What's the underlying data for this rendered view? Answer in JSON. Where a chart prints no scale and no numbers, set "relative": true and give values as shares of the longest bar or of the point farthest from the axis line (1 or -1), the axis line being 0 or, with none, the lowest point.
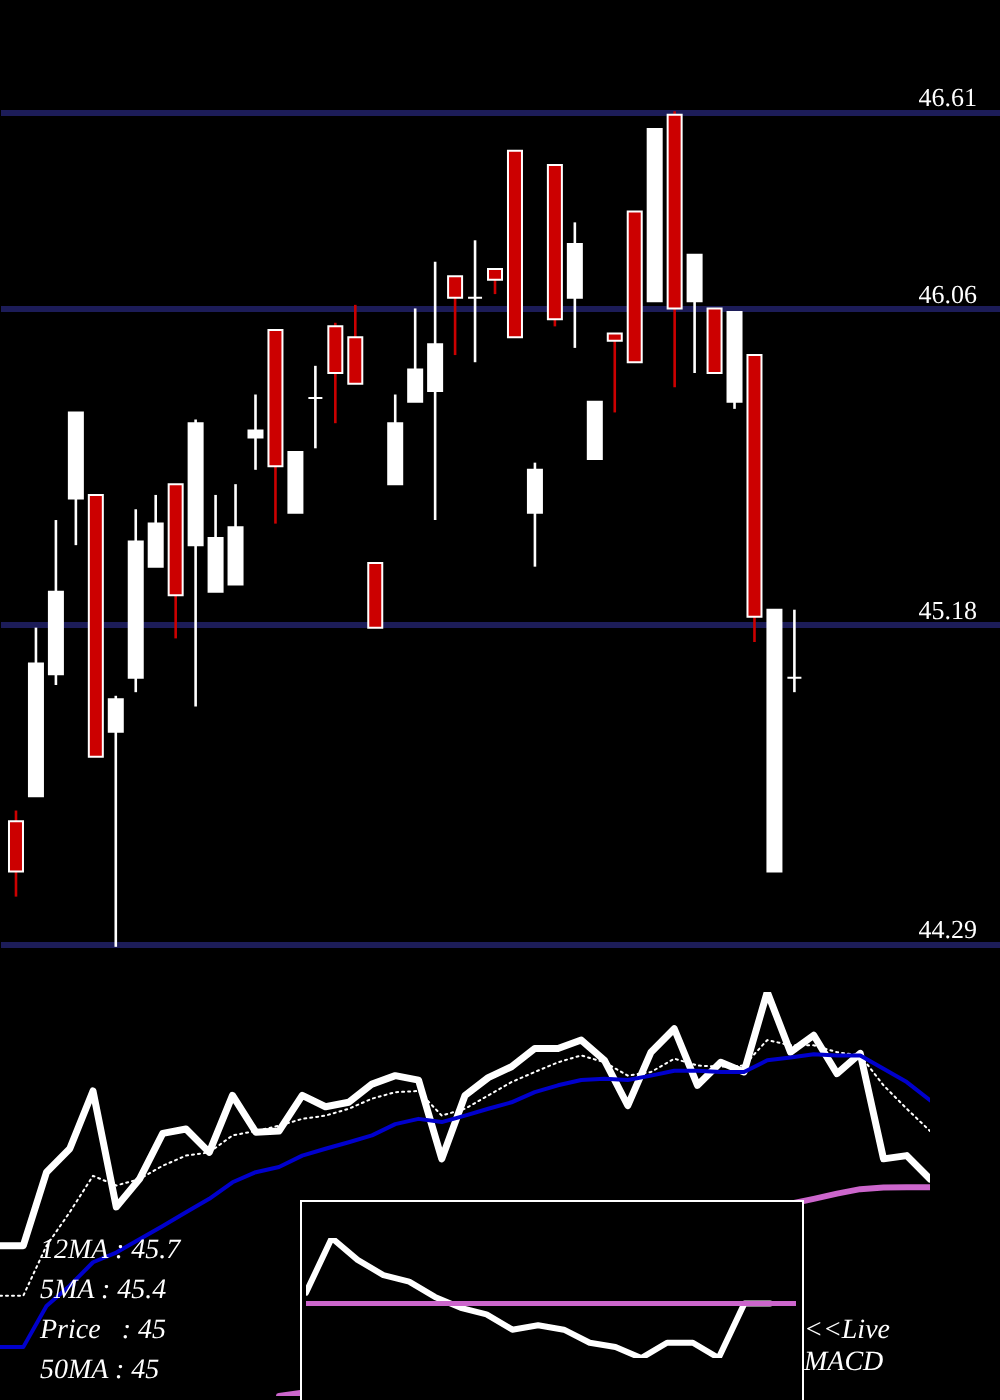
{
  "chart_data": [
    {
      "type": "candlestick",
      "categories": [
        null,
        null,
        null,
        null,
        null,
        null,
        null,
        null,
        null,
        null,
        null,
        null,
        null,
        null,
        null,
        null,
        null,
        null,
        null,
        null,
        null,
        null,
        null,
        null,
        null,
        null,
        null,
        null,
        null,
        null,
        null,
        null,
        null,
        null,
        null,
        null,
        null,
        null,
        null,
        null
      ],
      "ohlc": [
        [
          44.63,
          44.66,
          44.42,
          44.49
        ],
        [
          44.7,
          45.17,
          44.7,
          45.07
        ],
        [
          45.04,
          45.47,
          45.01,
          45.27
        ],
        [
          45.53,
          45.77,
          45.4,
          45.77
        ],
        [
          45.54,
          45.54,
          44.81,
          44.81
        ],
        [
          44.88,
          44.98,
          44.28,
          44.97
        ],
        [
          45.03,
          45.5,
          44.99,
          45.41
        ],
        [
          45.34,
          45.54,
          45.34,
          45.46
        ],
        [
          45.57,
          45.57,
          45.14,
          45.26
        ],
        [
          45.4,
          45.75,
          44.95,
          45.74
        ],
        [
          45.27,
          45.54,
          45.27,
          45.42
        ],
        [
          45.29,
          45.57,
          45.29,
          45.45
        ],
        [
          45.7,
          45.82,
          45.61,
          45.72
        ],
        [
          46.0,
          46.0,
          45.46,
          45.62
        ],
        [
          45.49,
          45.66,
          45.49,
          45.66
        ],
        [
          45.81,
          45.9,
          45.67,
          45.81
        ],
        [
          46.01,
          46.02,
          45.74,
          45.88
        ],
        [
          45.98,
          46.07,
          45.85,
          45.85
        ],
        [
          45.35,
          45.35,
          45.17,
          45.17
        ],
        [
          45.57,
          45.82,
          45.57,
          45.74
        ],
        [
          45.8,
          46.06,
          45.8,
          45.89
        ],
        [
          45.83,
          46.19,
          45.47,
          45.96
        ],
        [
          46.15,
          46.15,
          45.93,
          46.09
        ],
        [
          46.09,
          46.25,
          45.91,
          46.09
        ],
        [
          46.17,
          46.17,
          46.1,
          46.14
        ],
        [
          46.5,
          46.5,
          45.98,
          45.98
        ],
        [
          45.49,
          45.63,
          45.34,
          45.61
        ],
        [
          46.46,
          46.46,
          46.01,
          46.03
        ],
        [
          46.09,
          46.3,
          45.95,
          46.24
        ],
        [
          45.64,
          45.8,
          45.64,
          45.8
        ],
        [
          45.99,
          45.99,
          45.77,
          45.97
        ],
        [
          46.33,
          46.33,
          45.91,
          45.91
        ],
        [
          46.08,
          46.56,
          46.08,
          46.56
        ],
        [
          46.6,
          46.61,
          45.84,
          46.06
        ],
        [
          46.08,
          46.21,
          45.88,
          46.21
        ],
        [
          46.06,
          46.06,
          45.88,
          45.88
        ],
        [
          45.8,
          46.05,
          45.78,
          46.05
        ],
        [
          45.93,
          45.93,
          45.13,
          45.2
        ],
        [
          44.49,
          45.22,
          44.49,
          45.22
        ],
        [
          45.03,
          45.22,
          44.99,
          45.03
        ]
      ],
      "colors": [
        "#cc0000",
        "#ffffff",
        "#ffffff",
        "#ffffff",
        "#cc0000",
        "#ffffff",
        "#ffffff",
        "#ffffff",
        "#cc0000",
        "#ffffff",
        "#ffffff",
        "#ffffff",
        "#ffffff",
        "#cc0000",
        "#ffffff",
        "#ffffff",
        "#cc0000",
        "#cc0000",
        "#cc0000",
        "#ffffff",
        "#ffffff",
        "#ffffff",
        "#cc0000",
        "#ffffff",
        "#cc0000",
        "#cc0000",
        "#ffffff",
        "#cc0000",
        "#ffffff",
        "#ffffff",
        "#cc0000",
        "#cc0000",
        "#ffffff",
        "#cc0000",
        "#ffffff",
        "#cc0000",
        "#ffffff",
        "#cc0000",
        "#ffffff",
        "#ffffff"
      ],
      "ylim": [
        44.26,
        46.92
      ],
      "yticks": [
        44.29,
        45.18,
        46.06,
        46.61
      ],
      "grid": "y",
      "tick_labels": "y"
    },
    {
      "type": "line",
      "relative": true,
      "categories": [
        null,
        null,
        null,
        null,
        null,
        null,
        null,
        null,
        null,
        null,
        null,
        null,
        null,
        null,
        null,
        null,
        null,
        null,
        null,
        null,
        null,
        null,
        null,
        null,
        null,
        null,
        null,
        null,
        null,
        null,
        null,
        null,
        null,
        null,
        null,
        null,
        null,
        null,
        null,
        null,
        null
      ],
      "series": [
        {
          "color": "#ffffff",
          "line_style": "solid",
          "values": [
            0.372,
            0.372,
            0.554,
            0.612,
            0.755,
            0.468,
            0.537,
            0.65,
            0.661,
            0.603,
            0.744,
            0.653,
            0.656,
            0.744,
            0.716,
            0.727,
            0.772,
            0.793,
            0.782,
            0.587,
            0.744,
            0.788,
            0.815,
            0.86,
            0.86,
            0.881,
            0.831,
            0.719,
            0.851,
            0.909,
            0.769,
            0.826,
            0.802,
            1,
            0.851,
            0.893,
            0.798,
            0.848,
            0.587,
            0.595,
            0.537
          ]
        },
        {
          "color": "#ffffff",
          "line_style": "dotted",
          "values": [
            0.248,
            0.248,
            0.372,
            0.455,
            0.545,
            0.521,
            0.537,
            0.57,
            0.595,
            0.603,
            0.645,
            0.656,
            0.669,
            0.686,
            0.694,
            0.711,
            0.736,
            0.752,
            0.755,
            0.694,
            0.711,
            0.744,
            0.777,
            0.802,
            0.826,
            0.843,
            0.826,
            0.793,
            0.802,
            0.835,
            0.818,
            0.815,
            0.818,
            0.881,
            0.868,
            0.868,
            0.851,
            0.843,
            0.769,
            0.711,
            0.656
          ]
        },
        {
          "color": "#0000cc",
          "line_style": "solid",
          "values": [
            0.121,
            0.121,
            0.223,
            0.273,
            0.331,
            0.355,
            0.388,
            0.421,
            0.455,
            0.488,
            0.529,
            0.554,
            0.567,
            0.595,
            0.612,
            0.628,
            0.645,
            0.673,
            0.686,
            0.678,
            0.694,
            0.711,
            0.727,
            0.752,
            0.769,
            0.782,
            0.785,
            0.782,
            0.793,
            0.805,
            0.805,
            0.802,
            0.802,
            0.831,
            0.838,
            0.846,
            0.843,
            0.843,
            0.81,
            0.777,
            0.732
          ]
        },
        {
          "color": "#cc66cc",
          "line_style": "solid",
          "values": [
            null,
            null,
            null,
            null,
            null,
            null,
            null,
            null,
            null,
            null,
            null,
            null,
            0,
            0.008,
            null,
            null,
            null,
            null,
            null,
            null,
            null,
            null,
            null,
            null,
            null,
            null,
            null,
            null,
            null,
            null,
            null,
            null,
            null,
            null,
            0.476,
            0.488,
            0.501,
            0.512,
            0.516,
            0.517,
            0.517
          ]
        }
      ],
      "annotations": [
        "12MA : 45.7",
        "5MA : 45.4",
        "Price   : 45",
        "50MA : 45"
      ]
    },
    {
      "type": "line",
      "relative": true,
      "categories": [
        null,
        null,
        null,
        null,
        null,
        null,
        null,
        null,
        null,
        null,
        null,
        null,
        null,
        null,
        null,
        null,
        null,
        null,
        null,
        null
      ],
      "series": [
        {
          "color": "#ffffff",
          "values": [
            0.545,
            1,
            0.818,
            0.691,
            0.636,
            0.509,
            0.418,
            0.364,
            0.236,
            0.273,
            0.236,
            0.127,
            0.091,
            0,
            0.127,
            0.127,
            0,
            0.455,
            0.455,
            null
          ]
        },
        {
          "color": "#cc66cc",
          "values": [
            0.455,
            0.455,
            0.455,
            0.455,
            0.455,
            0.455,
            0.455,
            0.455,
            0.455,
            0.455,
            0.455,
            0.455,
            0.455,
            0.455,
            0.455,
            0.455,
            0.455,
            0.455,
            0.455,
            0.455
          ]
        }
      ],
      "annotations": [
        "<<Live",
        "MACD"
      ]
    }
  ]
}
